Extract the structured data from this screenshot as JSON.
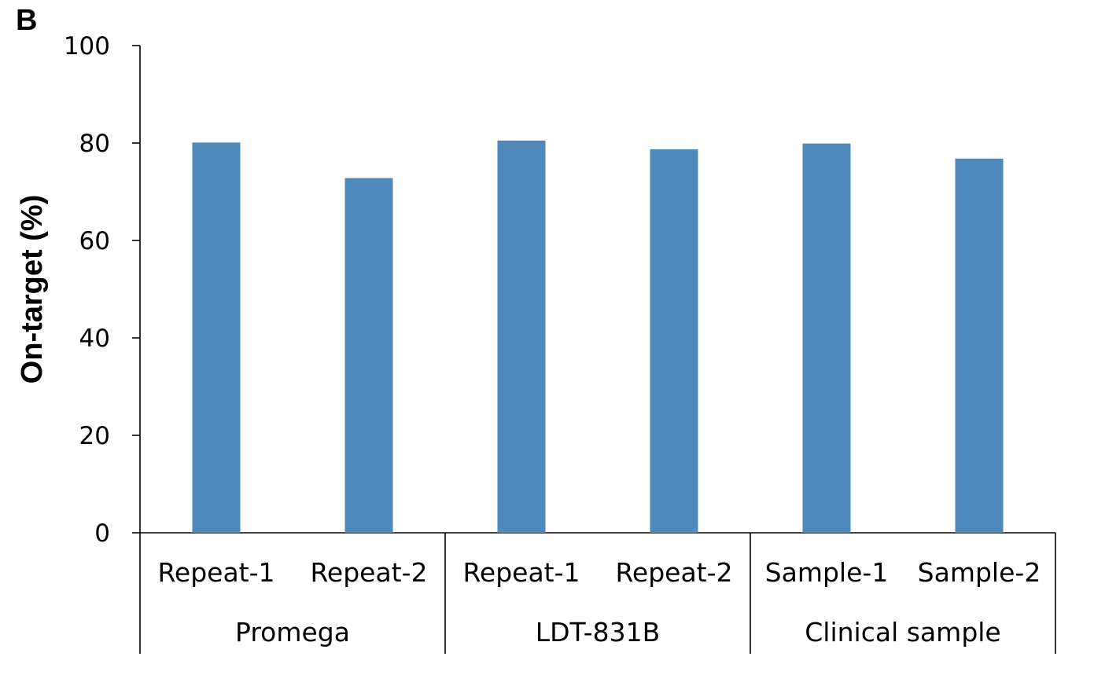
{
  "panel_label": "B",
  "chart_data": {
    "type": "bar",
    "ylabel": "On-target (%)",
    "xlabel": "",
    "ylim": [
      0,
      100
    ],
    "yticks": [
      0,
      20,
      40,
      60,
      80,
      100
    ],
    "grid": false,
    "bar_color": "#4f88bb",
    "groups": [
      {
        "name": "Promega",
        "categories": [
          "Repeat-1",
          "Repeat-2"
        ],
        "values": [
          80.1,
          72.8
        ]
      },
      {
        "name": "LDT-831B",
        "categories": [
          "Repeat-1",
          "Repeat-2"
        ],
        "values": [
          80.5,
          78.7
        ]
      },
      {
        "name": "Clinical sample",
        "categories": [
          "Sample-1",
          "Sample-2"
        ],
        "values": [
          79.9,
          76.8
        ]
      }
    ]
  }
}
